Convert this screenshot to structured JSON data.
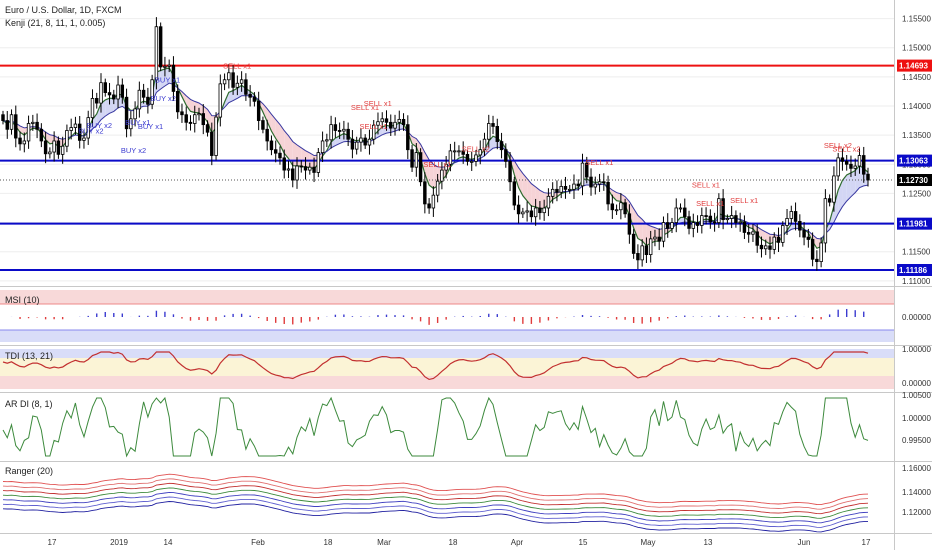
{
  "header": {
    "title": "Euro / U.S. Dollar, 1D, FXCM",
    "subtitle": "Kenji (21, 8, 11, 1, 0.005)"
  },
  "colors": {
    "bull": "#ffffff",
    "bear": "#000000",
    "red_level": "#ee1111",
    "blue_level": "#0a0ac8",
    "buy": "#3b3bd0",
    "sell": "#e03c3c",
    "band_upper": "#000000",
    "band_lower": "#3838a0",
    "cloud_bear": "#f6d3d6",
    "cloud_bull": "#d3d6f4",
    "axis_bg": "#ffffff",
    "grid": "#eeeeee"
  },
  "chart_data": [
    {
      "type": "candlestick",
      "title": "Euro / U.S. Dollar, 1D, FXCM",
      "indicator": "Kenji (21, 8, 11, 1, 0.005)",
      "x_ticks": [
        "17",
        "2019",
        "14",
        "Feb",
        "18",
        "Mar",
        "18",
        "Apr",
        "15",
        "May",
        "13",
        "Jun",
        "17"
      ],
      "y_ticks": [
        "1.15500",
        "1.15000",
        "1.14500",
        "1.14000",
        "1.13500",
        "1.13000",
        "1.12500",
        "1.12000",
        "1.11500",
        "1.11000"
      ],
      "ylim": [
        1.1098,
        1.1575
      ],
      "horizontal_levels": [
        {
          "value": 1.14693,
          "label": "1.14693",
          "color": "red"
        },
        {
          "value": 1.13063,
          "label": "1.13063",
          "color": "blue"
        },
        {
          "value": 1.11981,
          "label": "1.11981",
          "color": "blue"
        },
        {
          "value": 1.11186,
          "label": "1.11186",
          "color": "blue"
        }
      ],
      "last_price": {
        "value": 1.1273,
        "label": "1.12730"
      },
      "signals": [
        {
          "text": "BUY x2",
          "bar": 20,
          "type": "buy"
        },
        {
          "text": "BUY x2",
          "bar": 22,
          "type": "buy"
        },
        {
          "text": "BUY x2",
          "bar": 30,
          "type": "buy"
        },
        {
          "text": "BUY x1",
          "bar": 31,
          "type": "buy"
        },
        {
          "text": "BUY x1",
          "bar": 34,
          "type": "buy"
        },
        {
          "text": "BUY x2",
          "bar": 37,
          "type": "buy"
        },
        {
          "text": "BUY x1",
          "bar": 38,
          "type": "buy"
        },
        {
          "text": "SELL x1",
          "bar": 54,
          "type": "sell"
        },
        {
          "text": "SELL x1",
          "bar": 84,
          "type": "sell"
        },
        {
          "text": "SELL x1",
          "bar": 86,
          "type": "sell"
        },
        {
          "text": "SELL x1",
          "bar": 87,
          "type": "sell"
        },
        {
          "text": "SELL x1",
          "bar": 101,
          "type": "sell"
        },
        {
          "text": "SELL x2",
          "bar": 110,
          "type": "sell"
        },
        {
          "text": "SELL x1",
          "bar": 139,
          "type": "sell"
        },
        {
          "text": "SELL x1",
          "bar": 164,
          "type": "sell"
        },
        {
          "text": "SELL x1",
          "bar": 165,
          "type": "sell"
        },
        {
          "text": "SELL x1",
          "bar": 173,
          "type": "sell"
        },
        {
          "text": "SELL x2",
          "bar": 195,
          "type": "sell"
        },
        {
          "text": "SELL x2",
          "bar": 197,
          "type": "sell"
        }
      ],
      "closes": [
        1.1375,
        1.136,
        1.1385,
        1.1345,
        1.1335,
        1.134,
        1.137,
        1.1372,
        1.136,
        1.134,
        1.1318,
        1.1321,
        1.134,
        1.1317,
        1.1331,
        1.1358,
        1.1363,
        1.1369,
        1.1341,
        1.1345,
        1.138,
        1.1413,
        1.1405,
        1.144,
        1.1423,
        1.1419,
        1.1412,
        1.1436,
        1.1415,
        1.1361,
        1.1378,
        1.1395,
        1.1427,
        1.1415,
        1.1403,
        1.1445,
        1.1536,
        1.1467,
        1.1468,
        1.147,
        1.1425,
        1.139,
        1.1385,
        1.1372,
        1.137,
        1.1385,
        1.1387,
        1.1368,
        1.1355,
        1.1315,
        1.1381,
        1.1438,
        1.1445,
        1.1457,
        1.1432,
        1.1439,
        1.1445,
        1.142,
        1.1415,
        1.1408,
        1.1375,
        1.136,
        1.134,
        1.1325,
        1.1319,
        1.1311,
        1.129,
        1.1292,
        1.1273,
        1.1297,
        1.1296,
        1.129,
        1.1295,
        1.1286,
        1.132,
        1.134,
        1.1342,
        1.1368,
        1.1358,
        1.1357,
        1.136,
        1.1343,
        1.1326,
        1.1338,
        1.1345,
        1.1333,
        1.1343,
        1.1367,
        1.1373,
        1.1378,
        1.1372,
        1.1362,
        1.1372,
        1.1377,
        1.1368,
        1.1325,
        1.1295,
        1.132,
        1.127,
        1.1232,
        1.1225,
        1.1247,
        1.1271,
        1.129,
        1.13,
        1.1323,
        1.1323,
        1.1323,
        1.1317,
        1.1305,
        1.1305,
        1.1316,
        1.1325,
        1.1343,
        1.137,
        1.1365,
        1.1339,
        1.1325,
        1.1305,
        1.127,
        1.123,
        1.1215,
        1.1218,
        1.122,
        1.121,
        1.1225,
        1.1217,
        1.1225,
        1.1245,
        1.1257,
        1.1252,
        1.1262,
        1.1257,
        1.1257,
        1.1266,
        1.1263,
        1.1302,
        1.1278,
        1.1261,
        1.1266,
        1.127,
        1.1269,
        1.1232,
        1.1222,
        1.1222,
        1.1234,
        1.1215,
        1.118,
        1.1147,
        1.1136,
        1.116,
        1.1145,
        1.1172,
        1.1175,
        1.1168,
        1.12,
        1.119,
        1.12,
        1.1225,
        1.1225,
        1.121,
        1.119,
        1.12,
        1.1195,
        1.1212,
        1.1211,
        1.1201,
        1.12,
        1.1241,
        1.1205,
        1.1207,
        1.1212,
        1.12,
        1.1201,
        1.1183,
        1.118,
        1.1184,
        1.1161,
        1.1155,
        1.116,
        1.1154,
        1.1175,
        1.1166,
        1.1195,
        1.1207,
        1.1219,
        1.1202,
        1.1187,
        1.1175,
        1.1171,
        1.1137,
        1.1133,
        1.1165,
        1.1241,
        1.1235,
        1.128,
        1.1311,
        1.1305,
        1.13,
        1.1293,
        1.1297,
        1.1315,
        1.1283,
        1.1273
      ]
    },
    {
      "type": "histogram",
      "title": "MSI (10)",
      "y_ticks": [
        "0.00000"
      ],
      "ylim": [
        -1,
        1
      ]
    },
    {
      "type": "line",
      "title": "TDI (13, 21)",
      "y_ticks": [
        "1.00000",
        "0.00000"
      ],
      "ylim": [
        -0.2,
        1.1
      ]
    },
    {
      "type": "line",
      "title": "AR DI (8, 1)",
      "y_ticks": [
        "1.00500",
        "1.00000",
        "0.99500"
      ],
      "ylim": [
        0.991,
        1.006
      ]
    },
    {
      "type": "line",
      "title": "Ranger (20)",
      "y_ticks": [
        "1.16000",
        "1.14000",
        "1.12000"
      ],
      "ylim": [
        1.108,
        1.166
      ]
    }
  ]
}
